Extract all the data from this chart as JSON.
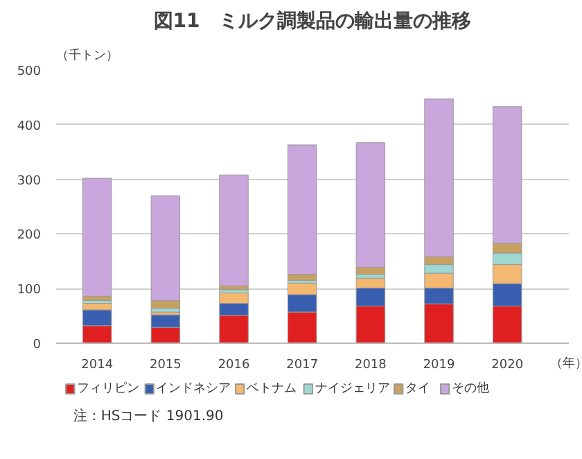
{
  "chart_data": {
    "type": "bar",
    "stacked": true,
    "title": "図11　ミルク調製品の輸出量の推移",
    "ylabel": "（千トン）",
    "xlabel": "（年）",
    "categories": [
      "2014",
      "2015",
      "2016",
      "2017",
      "2018",
      "2019",
      "2020"
    ],
    "series": [
      {
        "name": "フィリピン",
        "color": "#e02020",
        "values": [
          32,
          29,
          51,
          57,
          68,
          72,
          68
        ]
      },
      {
        "name": "インドネシア",
        "color": "#3a5fb0",
        "values": [
          29,
          23,
          22,
          32,
          33,
          29,
          41
        ]
      },
      {
        "name": "ベトナム",
        "color": "#f4b870",
        "values": [
          12,
          5,
          19,
          21,
          18,
          27,
          35
        ]
      },
      {
        "name": "ナイジェリア",
        "color": "#9fd8d2",
        "values": [
          5,
          7,
          6,
          5,
          7,
          16,
          21
        ]
      },
      {
        "name": "タイ",
        "color": "#c8a060",
        "values": [
          8,
          14,
          7,
          11,
          13,
          14,
          18
        ]
      },
      {
        "name": "その他",
        "color": "#c9a6dc",
        "values": [
          216,
          192,
          203,
          237,
          228,
          289,
          250
        ]
      }
    ],
    "ylim": [
      0,
      500
    ],
    "yticks": [
      0,
      100,
      200,
      300,
      400,
      500
    ],
    "grid": "y",
    "legend": "bottom",
    "annotations": [
      "注：HSコード 1901.90"
    ]
  }
}
